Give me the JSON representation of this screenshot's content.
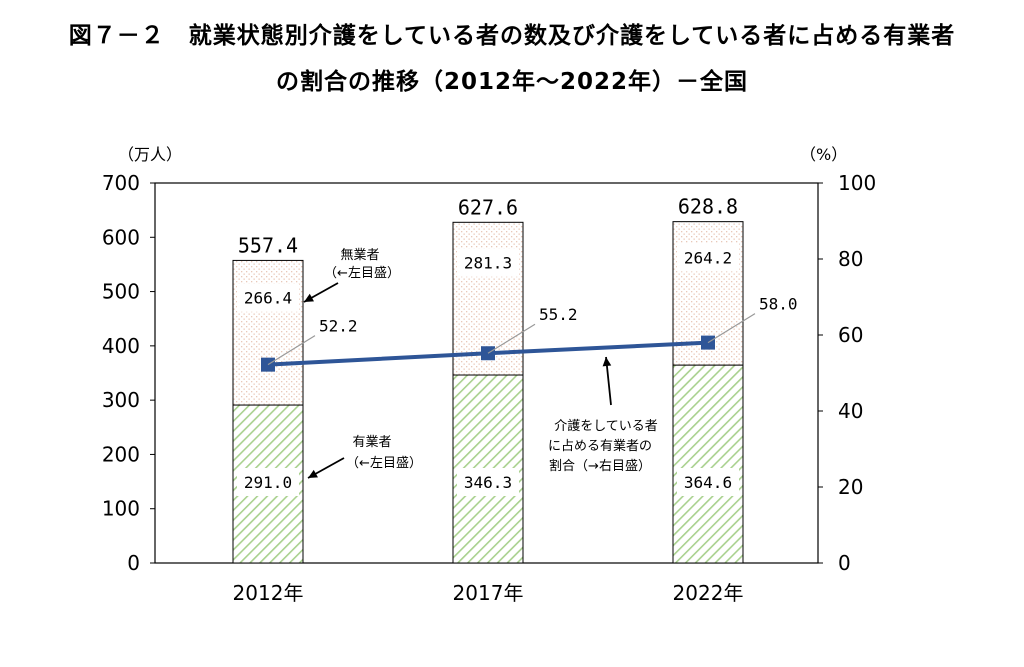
{
  "title_line1": "図７－２　就業状態別介護をしている者の数及び介護をしている者に占める有業者",
  "title_line2": "の割合の推移（2012年～2022年）－全国",
  "chart_data": {
    "type": "bar",
    "stacked": true,
    "categories": [
      "2012年",
      "2017年",
      "2022年"
    ],
    "series": [
      {
        "name": "有業者",
        "values": [
          291.0,
          346.3,
          364.6
        ],
        "labels": [
          "291.0",
          "346.3",
          "364.6"
        ]
      },
      {
        "name": "無業者",
        "values": [
          266.4,
          281.3,
          264.2
        ],
        "labels": [
          "266.4",
          "281.3",
          "264.2"
        ]
      }
    ],
    "totals": [
      557.4,
      627.6,
      628.8
    ],
    "total_labels": [
      "557.4",
      "627.6",
      "628.8"
    ],
    "line_series": {
      "name": "介護をしている者に占める有業者の割合",
      "values": [
        52.2,
        55.2,
        58.0
      ],
      "labels": [
        "52.2",
        "55.2",
        "58.0"
      ],
      "axis": "right"
    },
    "y_left": {
      "unit": "（万人）",
      "min": 0,
      "max": 700,
      "ticks": [
        "0",
        "100",
        "200",
        "300",
        "400",
        "500",
        "600",
        "700"
      ]
    },
    "y_right": {
      "unit": "（%）",
      "min": 0,
      "max": 100,
      "ticks": [
        "0",
        "20",
        "40",
        "60",
        "80",
        "100"
      ]
    },
    "annotations": {
      "mugyo": [
        "無業者",
        "（←左目盛）"
      ],
      "yugyo": [
        "有業者",
        "（←左目盛）"
      ],
      "ratio": [
        "介護をしている者",
        "に占める有業者の",
        "割合（→右目盛）"
      ]
    },
    "colors": {
      "line": "#2E5597",
      "hatch": "#A9D18E",
      "dots": "#E8C8B8",
      "frame": "#000000"
    },
    "grid": false,
    "legend": "none"
  }
}
